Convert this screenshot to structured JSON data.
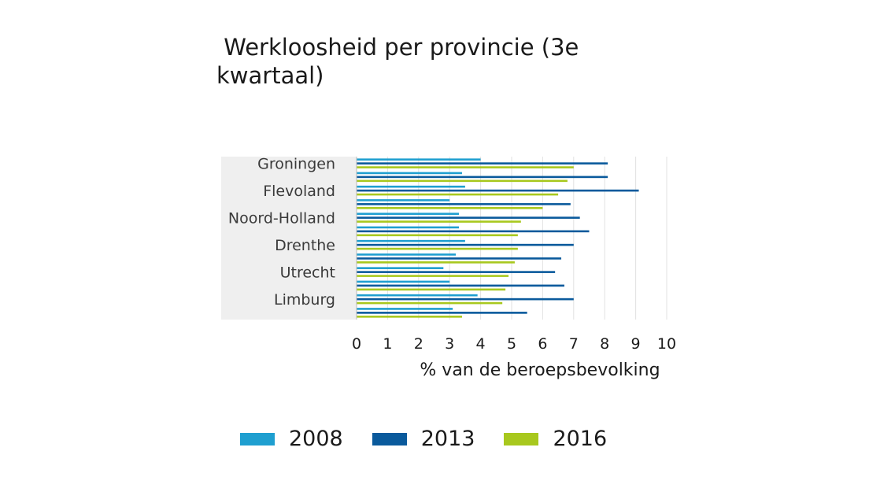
{
  "chart_data": {
    "type": "bar",
    "orientation": "horizontal",
    "title": " Werkloosheid per provincie (3e\nkwartaal)",
    "xlabel": "% van de beroepsbevolking",
    "ylabel": "",
    "xlim": [
      0,
      10
    ],
    "x_ticks": [
      "0",
      "1",
      "2",
      "3",
      "4",
      "5",
      "6",
      "7",
      "8",
      "9",
      "10"
    ],
    "categories": [
      "Groningen",
      "",
      "Flevoland",
      "",
      "Noord-Holland",
      "",
      "Drenthe",
      "",
      "Utrecht",
      "",
      "Limburg",
      ""
    ],
    "series": [
      {
        "name": "2008",
        "color": "#1f9fd0",
        "values": [
          4.0,
          3.4,
          3.5,
          3.0,
          3.3,
          3.3,
          3.5,
          3.2,
          2.8,
          3.0,
          3.9,
          3.1
        ]
      },
      {
        "name": "2013",
        "color": "#0a5a9c",
        "values": [
          8.1,
          8.1,
          9.1,
          6.9,
          7.2,
          7.5,
          7.0,
          6.6,
          6.4,
          6.7,
          7.0,
          5.5
        ]
      },
      {
        "name": "2016",
        "color": "#a8c81e",
        "values": [
          7.0,
          6.8,
          6.5,
          6.0,
          5.3,
          5.2,
          5.2,
          5.1,
          4.9,
          4.8,
          4.7,
          3.4
        ]
      }
    ],
    "grid": true,
    "legend_position": "bottom"
  }
}
